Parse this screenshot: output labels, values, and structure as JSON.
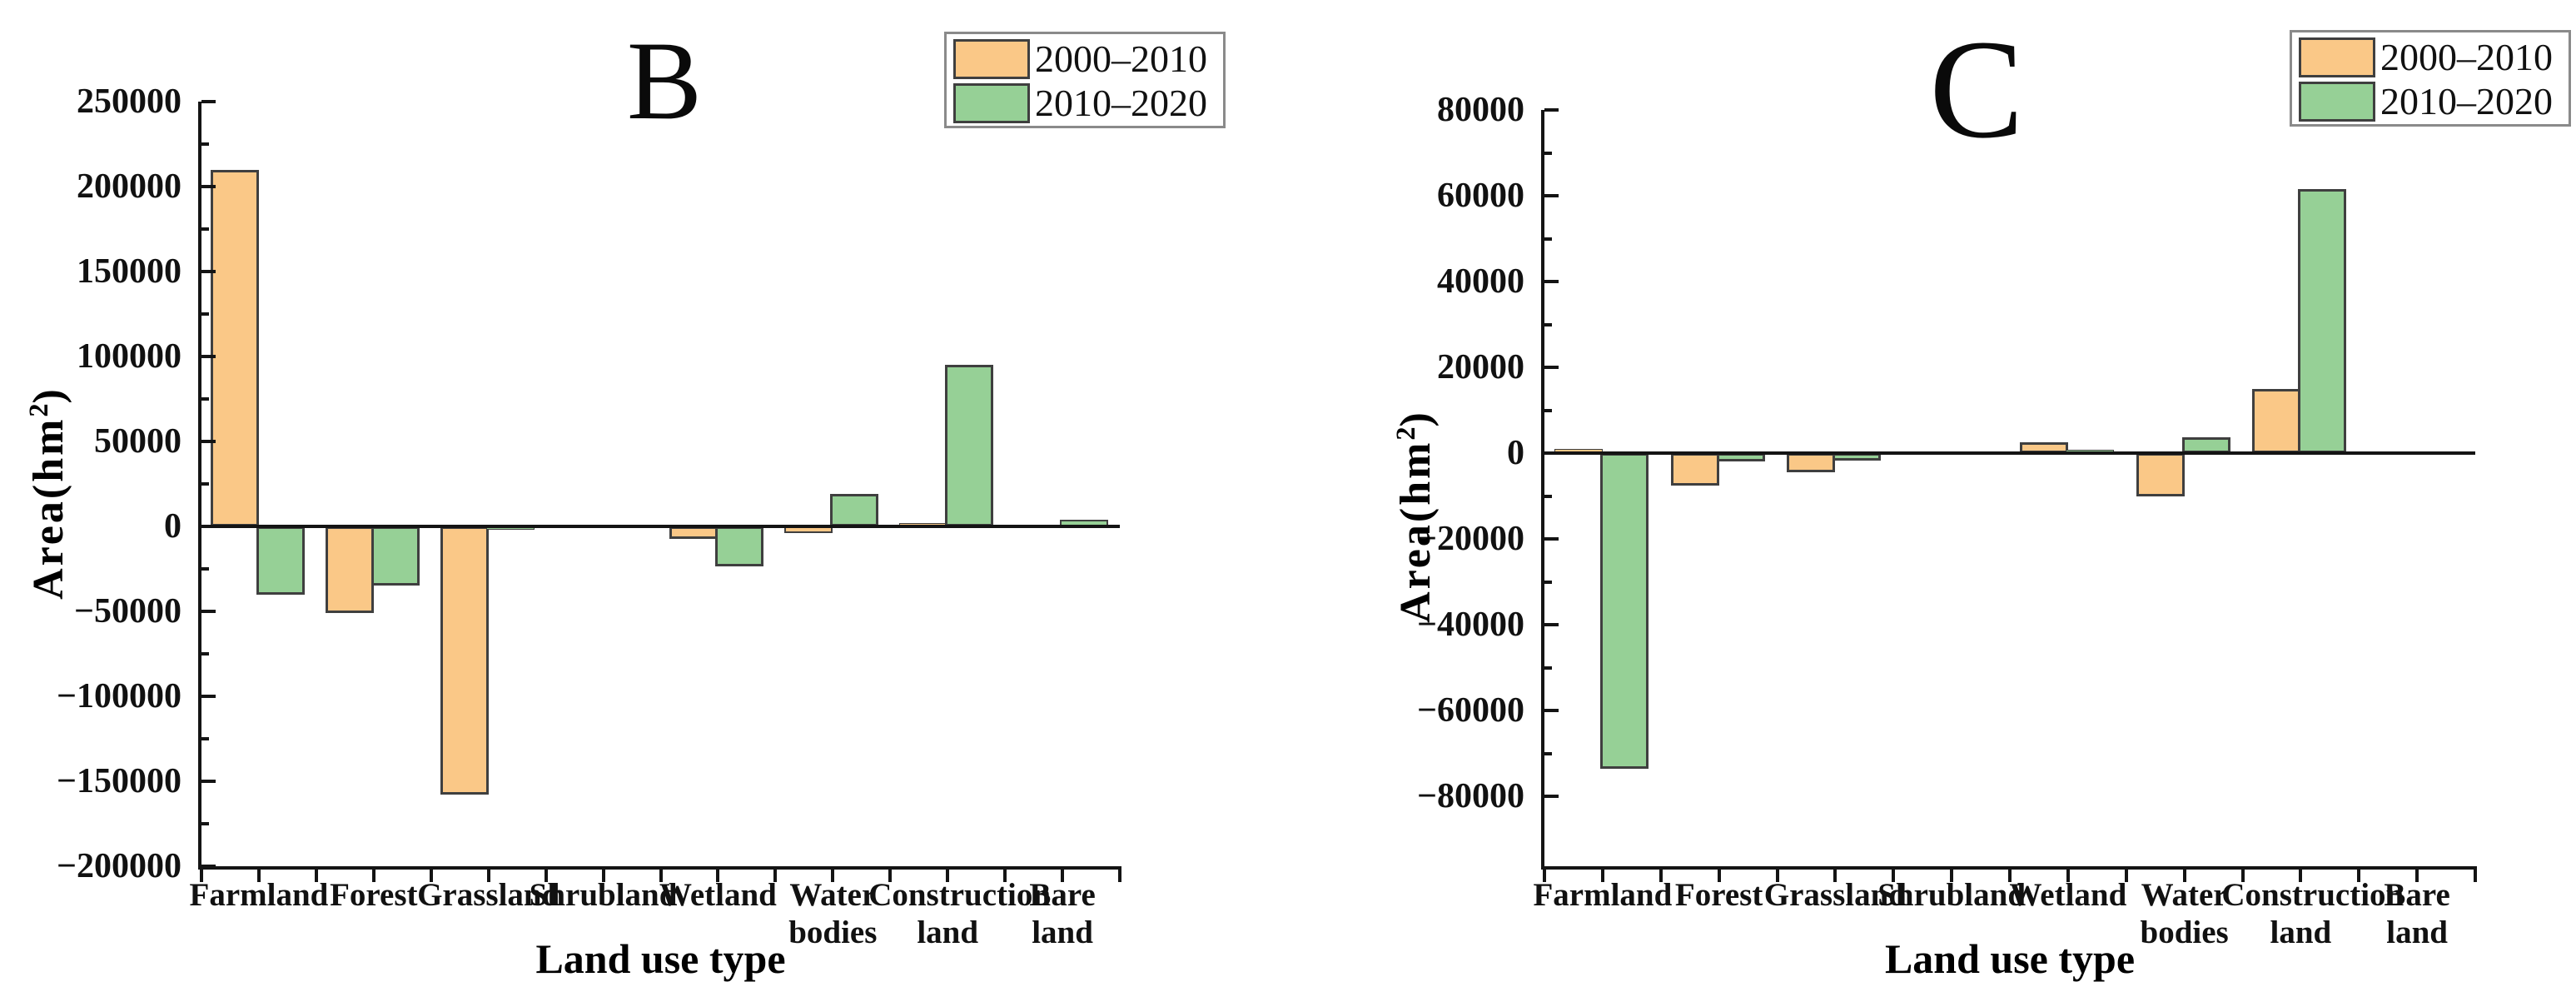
{
  "figure": {
    "background": "#ffffff",
    "panels": [
      "B",
      "C"
    ]
  },
  "colors": {
    "series1": "#FAC887",
    "series2": "#96D096",
    "bar_edge": "#3F3F3F",
    "axis": "#141414",
    "legend_border": "#8A8A8A",
    "text": "#111111"
  },
  "legend": {
    "items": [
      {
        "label": "2000–2010",
        "color_key": "series1"
      },
      {
        "label": "2010–2020",
        "color_key": "series2"
      }
    ],
    "position": "top-right"
  },
  "axis_titles": {
    "x": "Land use type",
    "y_pre": "Area(hm",
    "y_sup": "2",
    "y_post": ")"
  },
  "chart_data": [
    {
      "id": "B",
      "type": "bar",
      "title": "B",
      "xlabel": "Land use type",
      "ylabel": "Area(hm2)",
      "grid": false,
      "legend_position": "top-right",
      "categories": [
        [
          "Farmland"
        ],
        [
          "Forest"
        ],
        [
          "Grassland"
        ],
        [
          "Shrubland"
        ],
        [
          "Wetland"
        ],
        [
          "Water",
          "bodies"
        ],
        [
          "Construction",
          "land"
        ],
        [
          "Bare",
          "land"
        ]
      ],
      "ylim": [
        -200000,
        250000
      ],
      "ytick_step": 50000,
      "ytick_labels": [
        "250000",
        "200000",
        "150000",
        "100000",
        "50000",
        "0",
        "−50000",
        "−100000",
        "−150000",
        "−200000"
      ],
      "series": [
        {
          "name": "2000–2010",
          "color_key": "series1",
          "values": [
            210000,
            -51000,
            -158000,
            -300,
            -7500,
            -4000,
            2000,
            300
          ]
        },
        {
          "name": "2010–2020",
          "color_key": "series2",
          "values": [
            -40000,
            -35000,
            -2000,
            -200,
            -23500,
            19000,
            95000,
            4000
          ]
        }
      ]
    },
    {
      "id": "C",
      "type": "bar",
      "title": "C",
      "xlabel": "Land use type",
      "ylabel": "Area(hm2)",
      "grid": false,
      "legend_position": "top-right",
      "categories": [
        [
          "Farmland"
        ],
        [
          "Forest"
        ],
        [
          "Grassland"
        ],
        [
          "Shrubland"
        ],
        [
          "Wetland"
        ],
        [
          "Water",
          "bodies"
        ],
        [
          "Construction",
          "land"
        ],
        [
          "Bare",
          "land"
        ]
      ],
      "ylim": [
        -80000,
        80000
      ],
      "ytick_step": 20000,
      "ytick_labels": [
        "80000",
        "60000",
        "40000",
        "20000",
        "0",
        "−20000",
        "−40000",
        "−60000",
        "−80000"
      ],
      "series": [
        {
          "name": "2000–2010",
          "color_key": "series1",
          "values": [
            1000,
            -7500,
            -4500,
            -150,
            2500,
            -10000,
            15000,
            0
          ]
        },
        {
          "name": "2010–2020",
          "color_key": "series2",
          "values": [
            -73500,
            -2000,
            -1800,
            -150,
            800,
            3700,
            61500,
            0
          ]
        }
      ]
    }
  ]
}
